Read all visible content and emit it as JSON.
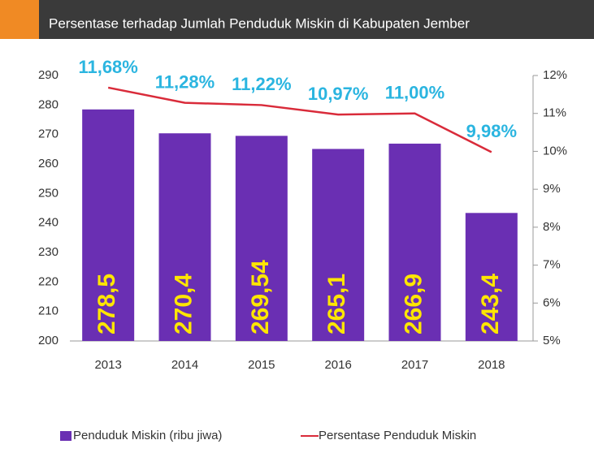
{
  "chart_data": {
    "type": "bar",
    "title": "Persentase terhadap Jumlah Penduduk Miskin di Kabupaten Jember",
    "categories": [
      "2013",
      "2014",
      "2015",
      "2016",
      "2017",
      "2018"
    ],
    "series": [
      {
        "name": "Penduduk Miskin (ribu jiwa)",
        "color": "#6a2fb3",
        "values": [
          278.5,
          270.4,
          269.54,
          265.1,
          266.9,
          243.4
        ],
        "value_labels": [
          "278,5",
          "270,4",
          "269,54",
          "265,1",
          "266,9",
          "243,4"
        ]
      },
      {
        "name": "Persentase Penduduk Miskin",
        "color": "#d92b3a",
        "type": "line",
        "axis": "y2",
        "values": [
          11.68,
          11.28,
          11.22,
          10.97,
          11.0,
          9.98
        ],
        "value_labels": [
          "11,68%",
          "11,28%",
          "11,22%",
          "10,97%",
          "11,00%",
          "9,98%"
        ]
      }
    ],
    "ylim": [
      200,
      290
    ],
    "yticks": [
      200,
      210,
      220,
      230,
      240,
      250,
      260,
      270,
      280,
      290
    ],
    "y2lim": [
      5,
      12
    ],
    "y2ticks": [
      {
        "value": 5,
        "label": "5%"
      },
      {
        "value": 6,
        "label": "6%"
      },
      {
        "value": 7,
        "label": "7%"
      },
      {
        "value": 8,
        "label": "8%"
      },
      {
        "value": 9,
        "label": "9%"
      },
      {
        "value": 10,
        "label": "10%"
      },
      {
        "value": 11,
        "label": "11%"
      },
      {
        "value": 12,
        "label": "12%"
      }
    ],
    "legend": "bottom"
  }
}
